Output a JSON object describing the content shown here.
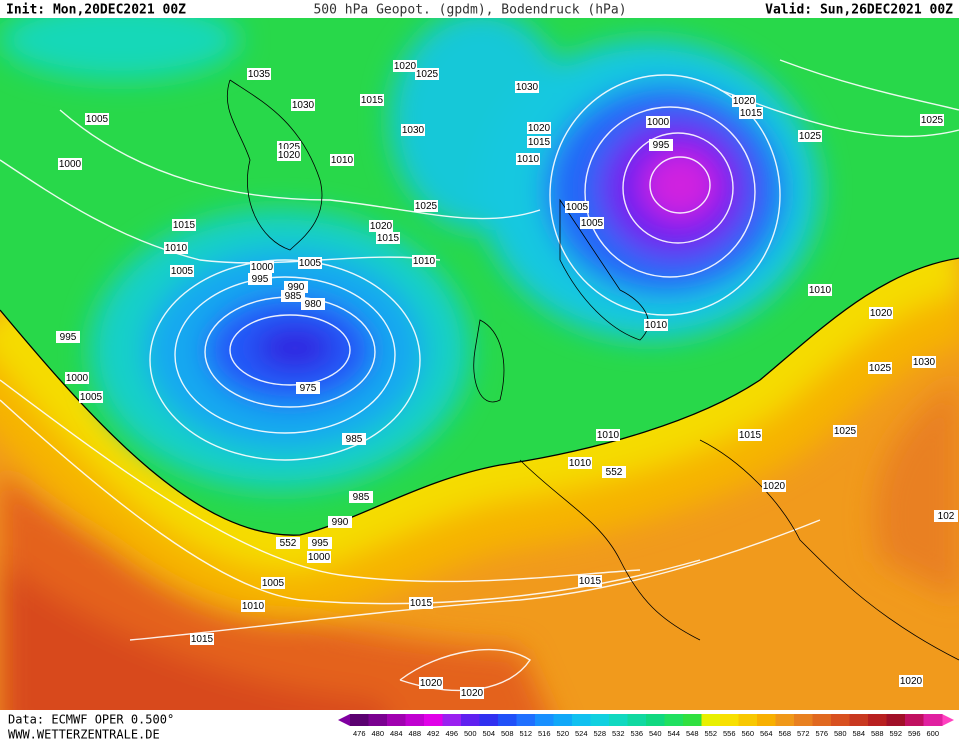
{
  "header": {
    "init": "Init: Mon,20DEC2021 00Z",
    "title": "500 hPa Geopot. (gpdm), Bodendruck (hPa)",
    "valid": "Valid: Sun,26DEC2021 00Z"
  },
  "footer": {
    "source": "Data: ECMWF OPER 0.500°",
    "website": "WWW.WETTERZENTRALE.DE"
  },
  "isobar_labels": [
    1035,
    1020,
    1025,
    1030,
    1030,
    1015,
    1005,
    1030,
    1025,
    1020,
    1020,
    1015,
    1010,
    1000,
    995,
    1020,
    1015,
    1025,
    1025,
    1000,
    1010,
    1025,
    1005,
    1005,
    1020,
    1015,
    1015,
    1010,
    1005,
    1005,
    1010,
    1000,
    995,
    990,
    985,
    980,
    995,
    1010,
    1010,
    1020,
    1030,
    1025,
    975,
    1000,
    1005,
    985,
    1010,
    1015,
    1025,
    1010,
    552,
    985,
    1020,
    990,
    "102",
    552,
    995,
    1000,
    1005,
    1010,
    1015,
    1015,
    1015,
    1020,
    1020,
    1020
  ],
  "colorbar": {
    "ticks": [
      476,
      480,
      484,
      488,
      492,
      496,
      500,
      504,
      508,
      512,
      516,
      520,
      524,
      528,
      532,
      536,
      540,
      544,
      548,
      552,
      556,
      560,
      564,
      568,
      572,
      576,
      580,
      584,
      588,
      592,
      596,
      600
    ],
    "colors": [
      "#5a0070",
      "#7a0090",
      "#a000b0",
      "#c000d0",
      "#e000e8",
      "#9a20f0",
      "#6020f0",
      "#3030f0",
      "#2050f8",
      "#2070ff",
      "#1890ff",
      "#10a8f8",
      "#10c0f0",
      "#10d0e0",
      "#10d8c0",
      "#10d8a0",
      "#10d880",
      "#20e060",
      "#30e040",
      "#e8f000",
      "#f8e000",
      "#f8c800",
      "#f8b000",
      "#f09818",
      "#e88020",
      "#e06820",
      "#d85020",
      "#c83820",
      "#b82020",
      "#a01028",
      "#c01060",
      "#e020a0"
    ],
    "end_colors": [
      "#8000a0",
      "#ff40c0"
    ]
  }
}
